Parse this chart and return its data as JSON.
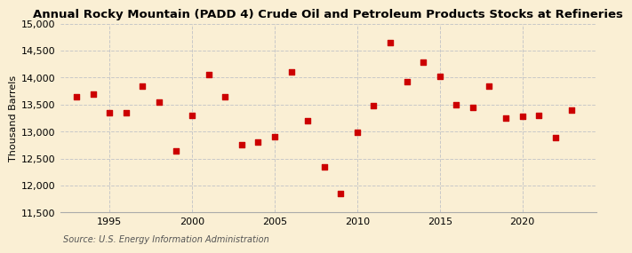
{
  "title": "Annual Rocky Mountain (PADD 4) Crude Oil and Petroleum Products Stocks at Refineries",
  "ylabel": "Thousand Barrels",
  "source": "Source: U.S. Energy Information Administration",
  "background_color": "#faefd4",
  "marker_color": "#cc0000",
  "years": [
    1993,
    1994,
    1995,
    1996,
    1997,
    1998,
    1999,
    2000,
    2001,
    2002,
    2003,
    2004,
    2005,
    2006,
    2007,
    2008,
    2009,
    2010,
    2011,
    2012,
    2013,
    2014,
    2015,
    2016,
    2017,
    2018,
    2019,
    2020,
    2021,
    2022,
    2023
  ],
  "values": [
    13650,
    13700,
    13350,
    13350,
    13850,
    13550,
    12650,
    13300,
    14050,
    13650,
    12750,
    12800,
    12900,
    14100,
    13200,
    12350,
    11850,
    12980,
    13480,
    14650,
    13920,
    14280,
    14020,
    13500,
    13450,
    13850,
    13250,
    13280,
    13300,
    12890,
    13400
  ],
  "ylim": [
    11500,
    15000
  ],
  "yticks": [
    11500,
    12000,
    12500,
    13000,
    13500,
    14000,
    14500,
    15000
  ],
  "xticks": [
    1995,
    2000,
    2005,
    2010,
    2015,
    2020
  ],
  "xlim": [
    1992,
    2024.5
  ],
  "grid_color": "#c8c8c8",
  "title_fontsize": 9.5,
  "label_fontsize": 8,
  "tick_fontsize": 8,
  "source_fontsize": 7
}
